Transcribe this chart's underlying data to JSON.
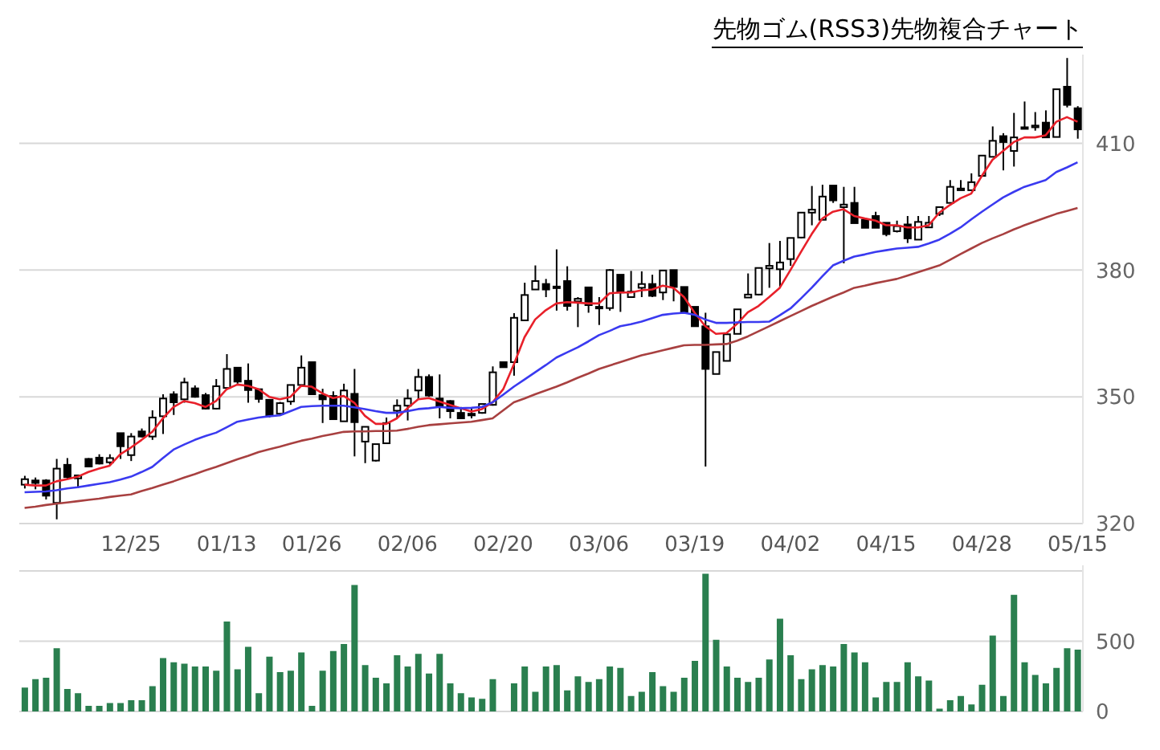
{
  "chart_data": [
    {
      "type": "candlestick",
      "title": "先物ゴム(RSS3)先物複合チャート",
      "categories": [
        null,
        null,
        null,
        null,
        null,
        null,
        null,
        null,
        null,
        null,
        "12/25",
        null,
        null,
        null,
        null,
        null,
        null,
        null,
        null,
        "01/13",
        null,
        null,
        null,
        null,
        null,
        null,
        null,
        "01/26",
        null,
        null,
        null,
        null,
        null,
        null,
        null,
        null,
        "02/06",
        null,
        null,
        null,
        null,
        null,
        null,
        null,
        null,
        "02/20",
        null,
        null,
        null,
        null,
        null,
        null,
        null,
        null,
        "03/06",
        null,
        null,
        null,
        null,
        null,
        null,
        null,
        null,
        "03/19",
        null,
        null,
        null,
        null,
        null,
        null,
        null,
        null,
        "04/02",
        null,
        null,
        null,
        null,
        null,
        null,
        null,
        null,
        "04/15",
        null,
        null,
        null,
        null,
        null,
        null,
        null,
        null,
        "04/28",
        null,
        null,
        null,
        null,
        null,
        null,
        null,
        null,
        "05/15"
      ],
      "ohlc": [
        [
          329.2,
          331.3,
          328.3,
          330.5
        ],
        [
          330.2,
          330.9,
          328.1,
          329.6
        ],
        [
          330.2,
          330.5,
          325.7,
          326.6
        ],
        [
          324.9,
          335.3,
          321.0,
          333.0
        ],
        [
          333.9,
          335.5,
          330.5,
          331.0
        ],
        [
          330.7,
          331.4,
          328.4,
          331.4
        ],
        [
          335.3,
          335.5,
          333.3,
          333.5
        ],
        [
          335.6,
          336.4,
          334.0,
          334.2
        ],
        [
          334.5,
          336.4,
          333.7,
          335.5
        ],
        [
          341.4,
          341.4,
          335.3,
          338.3
        ],
        [
          336.2,
          341.4,
          334.8,
          340.6
        ],
        [
          341.8,
          342.5,
          340.4,
          340.6
        ],
        [
          340.6,
          346.8,
          339.8,
          345.1
        ],
        [
          345.4,
          350.6,
          341.2,
          349.6
        ],
        [
          350.6,
          351.3,
          345.7,
          348.7
        ],
        [
          349.4,
          354.5,
          348.6,
          353.4
        ],
        [
          352.0,
          352.7,
          349.8,
          350.0
        ],
        [
          350.4,
          350.9,
          347.0,
          347.2
        ],
        [
          347.2,
          354.2,
          347.0,
          352.5
        ],
        [
          352.1,
          360.1,
          351.9,
          356.6
        ],
        [
          356.9,
          356.9,
          353.1,
          353.6
        ],
        [
          353.8,
          357.9,
          348.6,
          351.6
        ],
        [
          351.8,
          351.8,
          348.6,
          349.5
        ],
        [
          349.3,
          349.3,
          345.1,
          345.5
        ],
        [
          346.0,
          348.8,
          345.7,
          348.5
        ],
        [
          348.9,
          352.8,
          348.1,
          352.8
        ],
        [
          352.8,
          359.8,
          352.7,
          356.9
        ],
        [
          358.2,
          358.2,
          350.6,
          350.6
        ],
        [
          350.4,
          351.9,
          343.8,
          349.4
        ],
        [
          350.2,
          351.3,
          344.7,
          344.7
        ],
        [
          344.2,
          353.1,
          344.2,
          351.5
        ],
        [
          350.7,
          356.6,
          335.9,
          344.0
        ],
        [
          339.4,
          342.9,
          334.3,
          342.9
        ],
        [
          334.9,
          338.8,
          334.7,
          338.8
        ],
        [
          339.0,
          345.1,
          339.0,
          343.8
        ],
        [
          346.7,
          349.4,
          344.9,
          347.9
        ],
        [
          347.9,
          351.8,
          344.4,
          349.6
        ],
        [
          351.5,
          356.6,
          349.4,
          354.7
        ],
        [
          354.7,
          355.3,
          350.0,
          350.3
        ],
        [
          349.6,
          355.3,
          344.9,
          347.9
        ],
        [
          349.0,
          349.2,
          344.9,
          346.6
        ],
        [
          346.2,
          347.6,
          344.9,
          344.9
        ],
        [
          346.0,
          347.5,
          344.9,
          345.6
        ],
        [
          346.2,
          348.3,
          346.0,
          348.3
        ],
        [
          348.1,
          357.2,
          347.9,
          355.8
        ],
        [
          358.2,
          358.2,
          357.0,
          357.0
        ],
        [
          358.2,
          369.8,
          355.0,
          368.7
        ],
        [
          368.1,
          377.0,
          368.1,
          374.1
        ],
        [
          375.4,
          381.1,
          375.4,
          377.4
        ],
        [
          376.7,
          377.9,
          373.6,
          375.4
        ],
        [
          376.1,
          384.9,
          370.4,
          375.8
        ],
        [
          377.4,
          380.9,
          370.4,
          371.5
        ],
        [
          372.6,
          373.6,
          366.5,
          373.2
        ],
        [
          375.9,
          375.9,
          369.9,
          371.7
        ],
        [
          371.3,
          373.6,
          367.0,
          371.0
        ],
        [
          371.0,
          380.2,
          370.4,
          380.0
        ],
        [
          378.9,
          378.9,
          370.1,
          374.7
        ],
        [
          373.6,
          379.8,
          373.4,
          374.9
        ],
        [
          375.8,
          379.7,
          373.6,
          376.7
        ],
        [
          376.7,
          378.9,
          373.6,
          373.9
        ],
        [
          374.7,
          379.9,
          372.9,
          379.9
        ],
        [
          380.0,
          380.0,
          372.6,
          376.0
        ],
        [
          376.0,
          376.0,
          370.1,
          370.1
        ],
        [
          371.3,
          371.3,
          366.7,
          366.7
        ],
        [
          366.7,
          369.9,
          333.5,
          356.6
        ],
        [
          355.4,
          360.6,
          355.4,
          360.6
        ],
        [
          358.5,
          365.1,
          358.5,
          364.8
        ],
        [
          364.9,
          370.7,
          364.9,
          370.7
        ],
        [
          373.5,
          379.2,
          373.5,
          374.2
        ],
        [
          374.2,
          380.5,
          374.0,
          380.5
        ],
        [
          380.4,
          386.4,
          375.8,
          381.0
        ],
        [
          380.2,
          386.9,
          375.8,
          381.8
        ],
        [
          382.6,
          387.6,
          381.0,
          387.6
        ],
        [
          387.7,
          393.6,
          387.5,
          393.6
        ],
        [
          393.6,
          399.9,
          390.6,
          394.3
        ],
        [
          391.9,
          400.2,
          391.9,
          397.4
        ],
        [
          400.0,
          400.0,
          395.9,
          396.5
        ],
        [
          394.9,
          399.7,
          381.6,
          395.5
        ],
        [
          395.9,
          399.7,
          391.1,
          391.1
        ],
        [
          391.9,
          391.9,
          390.0,
          390.0
        ],
        [
          392.8,
          393.8,
          390.0,
          390.0
        ],
        [
          391.2,
          391.2,
          388.0,
          388.5
        ],
        [
          389.2,
          391.7,
          388.9,
          390.4
        ],
        [
          390.8,
          392.8,
          386.4,
          387.5
        ],
        [
          387.2,
          392.8,
          387.2,
          391.4
        ],
        [
          390.1,
          392.8,
          390.1,
          391.2
        ],
        [
          393.3,
          394.9,
          392.8,
          394.9
        ],
        [
          395.9,
          401.3,
          395.9,
          399.7
        ],
        [
          398.9,
          401.3,
          398.9,
          399.3
        ],
        [
          398.9,
          402.9,
          398.9,
          400.8
        ],
        [
          402.3,
          407.1,
          402.3,
          407.1
        ],
        [
          406.8,
          414.0,
          406.8,
          410.6
        ],
        [
          411.7,
          412.4,
          403.6,
          410.3
        ],
        [
          408.2,
          417.2,
          404.5,
          411.4
        ],
        [
          413.5,
          419.9,
          413.5,
          413.8
        ],
        [
          413.8,
          417.4,
          413.0,
          414.2
        ],
        [
          414.9,
          417.8,
          411.4,
          411.4
        ],
        [
          411.5,
          422.8,
          411.5,
          422.8
        ],
        [
          423.4,
          430.2,
          418.5,
          419.1
        ],
        [
          418.3,
          418.8,
          411.1,
          413.3
        ]
      ],
      "series": [
        {
          "type": "line",
          "color": "#e8202a",
          "values": [
            329.2,
            329.0,
            329.0,
            330.0,
            330.5,
            331.1,
            332.2,
            333.0,
            333.7,
            336.4,
            338.0,
            339.8,
            341.7,
            344.9,
            347.6,
            349.0,
            348.5,
            347.6,
            349.0,
            351.8,
            352.9,
            352.6,
            351.8,
            350.0,
            349.4,
            350.0,
            352.6,
            352.4,
            350.8,
            349.7,
            350.2,
            348.6,
            345.5,
            343.6,
            343.6,
            344.9,
            347.3,
            349.4,
            349.7,
            348.9,
            348.1,
            347.3,
            346.5,
            347.1,
            348.7,
            351.8,
            357.7,
            364.1,
            368.3,
            370.5,
            372.1,
            372.4,
            372.3,
            372.1,
            372.1,
            374.5,
            374.7,
            374.7,
            375.2,
            375.4,
            376.3,
            375.8,
            373.6,
            369.9,
            366.7,
            364.9,
            365.1,
            367.3,
            370.0,
            371.5,
            373.6,
            375.8,
            380.0,
            384.3,
            388.5,
            392.2,
            393.8,
            394.4,
            392.8,
            392.2,
            391.7,
            390.6,
            390.6,
            390.1,
            390.1,
            390.6,
            393.6,
            395.4,
            397.0,
            398.1,
            402.3,
            406.1,
            408.2,
            410.3,
            411.4,
            411.4,
            411.9,
            415.1,
            416.2,
            415.1
          ]
        },
        {
          "type": "line",
          "color": "#3a3af0",
          "values": [
            327.4,
            327.5,
            327.6,
            327.9,
            328.3,
            328.6,
            329.0,
            329.4,
            329.8,
            330.4,
            331.1,
            332.2,
            333.4,
            335.5,
            337.5,
            338.7,
            339.8,
            340.7,
            341.5,
            342.8,
            344.1,
            344.6,
            345.1,
            345.4,
            345.6,
            346.6,
            347.6,
            347.8,
            347.9,
            347.9,
            347.9,
            347.5,
            347.1,
            346.6,
            346.2,
            346.2,
            346.6,
            347.1,
            347.3,
            347.6,
            347.4,
            347.3,
            347.4,
            347.6,
            348.7,
            350.5,
            352.4,
            354.1,
            355.8,
            357.5,
            359.3,
            360.5,
            361.7,
            363.1,
            364.6,
            365.6,
            366.7,
            367.2,
            367.8,
            368.6,
            369.4,
            369.7,
            369.9,
            369.4,
            368.3,
            367.5,
            367.5,
            367.6,
            367.7,
            367.7,
            367.8,
            369.3,
            370.9,
            373.3,
            375.8,
            378.5,
            381.1,
            382.2,
            383.2,
            383.7,
            384.3,
            384.7,
            385.1,
            385.3,
            385.5,
            386.3,
            387.2,
            388.6,
            390.1,
            392.0,
            393.8,
            395.5,
            397.2,
            398.5,
            399.7,
            400.5,
            401.3,
            403.2,
            404.3,
            405.5
          ]
        },
        {
          "type": "line",
          "color": "#a84040",
          "values": [
            323.7,
            324.0,
            324.4,
            324.7,
            325.0,
            325.3,
            325.6,
            325.9,
            326.3,
            326.6,
            326.9,
            327.7,
            328.4,
            329.2,
            330.0,
            330.9,
            331.7,
            332.6,
            333.4,
            334.3,
            335.2,
            336.0,
            336.9,
            337.6,
            338.2,
            338.9,
            339.6,
            340.1,
            340.7,
            341.2,
            341.7,
            341.8,
            341.8,
            341.9,
            341.9,
            342.0,
            342.4,
            342.9,
            343.3,
            343.5,
            343.7,
            343.9,
            344.1,
            344.5,
            344.9,
            346.8,
            348.7,
            349.6,
            350.6,
            351.5,
            352.4,
            353.4,
            354.5,
            355.5,
            356.6,
            357.4,
            358.2,
            359.0,
            359.8,
            360.4,
            361.0,
            361.6,
            362.2,
            362.3,
            362.3,
            362.4,
            362.5,
            363.3,
            364.3,
            365.5,
            366.7,
            367.9,
            369.1,
            370.3,
            371.5,
            372.6,
            373.7,
            374.7,
            375.8,
            376.3,
            376.9,
            377.4,
            377.9,
            378.7,
            379.5,
            380.3,
            381.1,
            382.4,
            383.8,
            385.1,
            386.4,
            387.5,
            388.5,
            389.6,
            390.6,
            391.5,
            392.4,
            393.3,
            394.0,
            394.7
          ]
        }
      ],
      "ylim": [
        320,
        431
      ],
      "yticks": [
        320,
        350,
        380,
        410
      ],
      "grid": "y"
    },
    {
      "type": "bar",
      "color": "#2a7f4f",
      "categories": [
        null,
        null,
        null,
        null,
        null,
        null,
        null,
        null,
        null,
        null,
        null,
        null,
        null,
        null,
        null,
        null,
        null,
        null,
        null,
        null,
        null,
        null,
        null,
        null,
        null,
        null,
        null,
        null,
        null,
        null,
        null,
        null,
        null,
        null,
        null,
        null,
        null,
        null,
        null,
        null,
        null,
        null,
        null,
        null,
        null,
        null,
        null,
        null,
        null,
        null,
        null,
        null,
        null,
        null,
        null,
        null,
        null,
        null,
        null,
        null,
        null,
        null,
        null,
        null,
        null,
        null,
        null,
        null,
        null,
        null,
        null,
        null,
        null,
        null,
        null,
        null,
        null,
        null,
        null,
        null,
        null,
        null,
        null,
        null,
        null,
        null,
        null,
        null,
        null,
        null,
        null,
        null,
        null,
        null,
        null,
        null,
        null,
        null,
        null,
        null
      ],
      "values": [
        170,
        230,
        240,
        450,
        160,
        130,
        40,
        40,
        60,
        60,
        80,
        80,
        180,
        380,
        350,
        340,
        320,
        320,
        290,
        640,
        300,
        460,
        130,
        390,
        280,
        290,
        420,
        40,
        290,
        430,
        480,
        900,
        330,
        240,
        200,
        400,
        320,
        410,
        270,
        410,
        200,
        130,
        100,
        90,
        230,
        0,
        200,
        320,
        140,
        320,
        330,
        150,
        250,
        210,
        230,
        320,
        310,
        110,
        140,
        280,
        180,
        140,
        240,
        360,
        980,
        510,
        320,
        240,
        210,
        240,
        370,
        660,
        400,
        230,
        300,
        330,
        320,
        480,
        420,
        350,
        100,
        210,
        210,
        350,
        250,
        220,
        20,
        80,
        110,
        50,
        190,
        540,
        110,
        830,
        350,
        260,
        200,
        310,
        450,
        440
      ],
      "ylim": [
        0,
        1040
      ],
      "yticks": [
        0,
        500,
        {
          "value": 1000,
          "label": null
        }
      ],
      "grid": "y",
      "tick_labels": "y"
    }
  ]
}
